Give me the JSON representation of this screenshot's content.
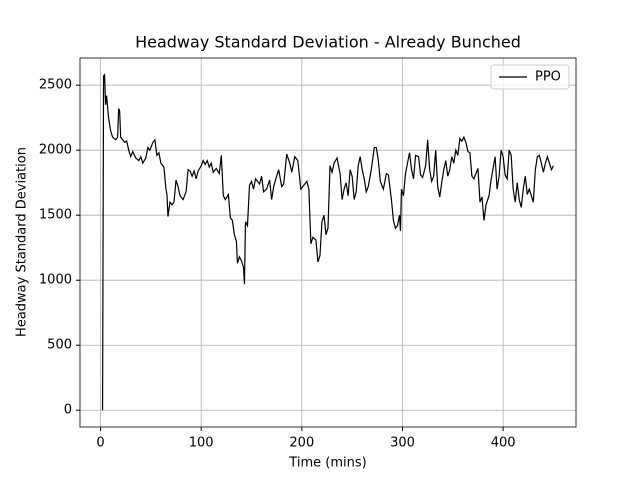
{
  "chart_data": {
    "type": "line",
    "title": "Headway Standard Deviation - Already Bunched",
    "xlabel": "Time (mins)",
    "ylabel": "Headway Standard Deviation",
    "xlim": [
      -20.4,
      472.4
    ],
    "ylim": [
      -129,
      2709
    ],
    "xticks": [
      0,
      100,
      200,
      300,
      400
    ],
    "yticks": [
      0,
      500,
      1000,
      1500,
      2000,
      2500
    ],
    "grid": true,
    "legend": "upper right",
    "series": [
      {
        "name": "PPO",
        "color": "#000000",
        "x": [
          2,
          3,
          4,
          5,
          6,
          8,
          10,
          12,
          15,
          17,
          18,
          19,
          20,
          22,
          24,
          26,
          28,
          30,
          32,
          35,
          38,
          40,
          42,
          45,
          47,
          49,
          52,
          54,
          56,
          58,
          60,
          63,
          65,
          66,
          67,
          69,
          71,
          73,
          75,
          77,
          79,
          82,
          85,
          87,
          89,
          91,
          93,
          95,
          97,
          100,
          102,
          104,
          106,
          108,
          110,
          112,
          115,
          118,
          120,
          122,
          124,
          127,
          129,
          131,
          133,
          135,
          136,
          138,
          140,
          142,
          143,
          144,
          146,
          148,
          150,
          152,
          154,
          156,
          158,
          160,
          162,
          165,
          168,
          170,
          172,
          175,
          177,
          180,
          182,
          185,
          188,
          190,
          193,
          196,
          199,
          202,
          205,
          207,
          209,
          211,
          214,
          216,
          218,
          220,
          222,
          224,
          226,
          228,
          230,
          232,
          235,
          238,
          240,
          242,
          244,
          246,
          248,
          250,
          252,
          254,
          256,
          258,
          260,
          262,
          264,
          266,
          269,
          272,
          274,
          276,
          278,
          281,
          284,
          286,
          289,
          291,
          293,
          295,
          297,
          298,
          299,
          301,
          303,
          305,
          307,
          309,
          311,
          313,
          316,
          318,
          320,
          323,
          325,
          327,
          329,
          331,
          333,
          335,
          337,
          339,
          341,
          343,
          345,
          347,
          349,
          351,
          353,
          355,
          357,
          359,
          361,
          363,
          365,
          367,
          369,
          371,
          373,
          375,
          377,
          379,
          381,
          383,
          386,
          388,
          390,
          392,
          394,
          396,
          398,
          400,
          402,
          404,
          406,
          408,
          410,
          412,
          414,
          416,
          418,
          420,
          422,
          424,
          426,
          428,
          430,
          432,
          434,
          436,
          438,
          440,
          442,
          444,
          446,
          448,
          450
        ],
        "values": [
          0,
          2570,
          2580,
          2350,
          2420,
          2250,
          2150,
          2100,
          2080,
          2100,
          2320,
          2300,
          2100,
          2080,
          2060,
          2070,
          2000,
          1950,
          1990,
          1940,
          1920,
          1950,
          1900,
          1940,
          2020,
          2000,
          2060,
          2080,
          1960,
          1980,
          1900,
          1870,
          1700,
          1660,
          1490,
          1600,
          1580,
          1600,
          1770,
          1720,
          1650,
          1620,
          1680,
          1850,
          1840,
          1800,
          1840,
          1780,
          1840,
          1880,
          1920,
          1890,
          1920,
          1870,
          1900,
          1830,
          1860,
          1820,
          1960,
          1650,
          1620,
          1660,
          1480,
          1460,
          1350,
          1300,
          1130,
          1180,
          1150,
          1100,
          970,
          1450,
          1420,
          1730,
          1760,
          1700,
          1780,
          1760,
          1740,
          1800,
          1680,
          1700,
          1770,
          1620,
          1720,
          1800,
          1850,
          1720,
          1740,
          1970,
          1900,
          1830,
          1950,
          1920,
          1700,
          1730,
          1760,
          1700,
          1280,
          1330,
          1310,
          1140,
          1190,
          1450,
          1500,
          1350,
          1400,
          1880,
          1830,
          1900,
          1940,
          1820,
          1620,
          1700,
          1750,
          1650,
          1850,
          1800,
          1620,
          1680,
          1880,
          1950,
          1850,
          1780,
          1680,
          1720,
          1850,
          2020,
          2020,
          1920,
          1760,
          1700,
          1820,
          1810,
          1620,
          1460,
          1400,
          1420,
          1500,
          1380,
          1700,
          1650,
          1820,
          1900,
          1980,
          1850,
          1780,
          1960,
          1950,
          1810,
          1790,
          1880,
          2080,
          1850,
          1760,
          1800,
          2000,
          1720,
          1640,
          1750,
          1850,
          1920,
          1800,
          1850,
          1950,
          1900,
          2000,
          1960,
          2090,
          2070,
          2100,
          2060,
          1990,
          1980,
          1800,
          1780,
          1820,
          1860,
          1600,
          1640,
          1460,
          1580,
          1650,
          1770,
          1860,
          1950,
          1700,
          1800,
          2000,
          1950,
          1810,
          1780,
          2000,
          1960,
          1700,
          1600,
          1750,
          1620,
          1560,
          1700,
          1800,
          1660,
          1700,
          1650,
          1600,
          1850,
          1950,
          1960,
          1900,
          1830,
          1900,
          1950,
          1900,
          1850,
          1880
        ]
      }
    ]
  }
}
